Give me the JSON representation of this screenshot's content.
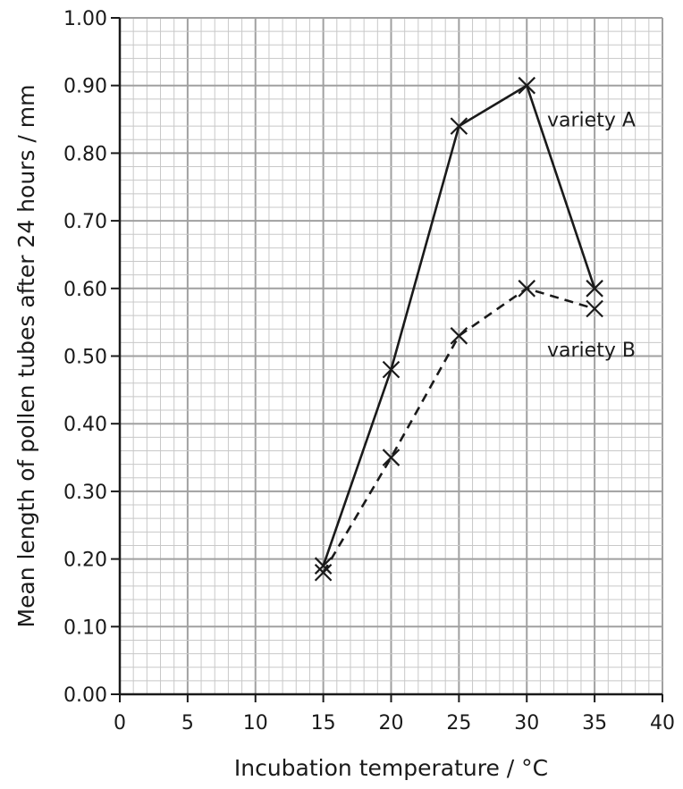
{
  "chart_data": {
    "type": "line",
    "title": "",
    "xlabel": "Incubation temperature / °C",
    "ylabel": "Mean length of pollen tubes after 24 hours / mm",
    "xlim": [
      0,
      40
    ],
    "ylim": [
      0,
      1.0
    ],
    "x_ticks": [
      "0",
      "5",
      "10",
      "15",
      "20",
      "25",
      "30",
      "35",
      "40"
    ],
    "y_ticks": [
      "0.00",
      "0.10",
      "0.20",
      "0.30",
      "0.40",
      "0.50",
      "0.60",
      "0.70",
      "0.80",
      "0.90",
      "1.00"
    ],
    "grid": true,
    "marker": "cross",
    "series": [
      {
        "name": "variety A",
        "line_style": "solid",
        "x": [
          15,
          20,
          25,
          30,
          35
        ],
        "y": [
          0.19,
          0.48,
          0.84,
          0.9,
          0.6
        ]
      },
      {
        "name": "variety B",
        "line_style": "dashed",
        "x": [
          15,
          20,
          25,
          30,
          35
        ],
        "y": [
          0.18,
          0.35,
          0.53,
          0.6,
          0.57
        ]
      }
    ]
  }
}
